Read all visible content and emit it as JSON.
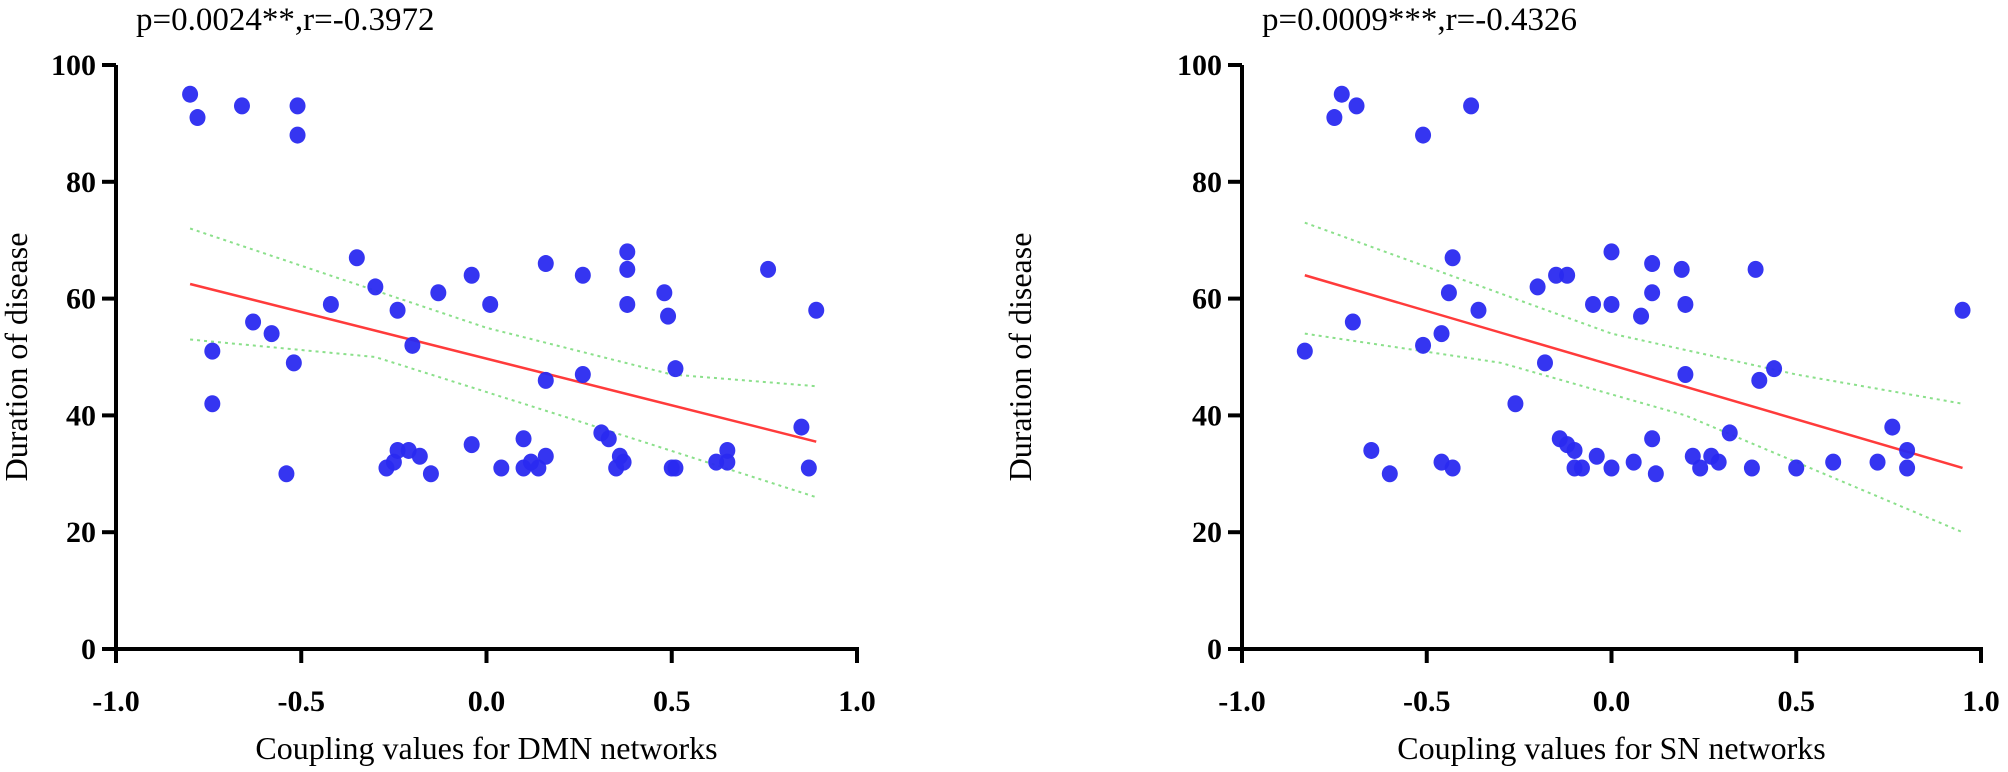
{
  "chart_data": [
    {
      "type": "scatter",
      "title": "p=0.0024**,r=-0.3972",
      "xlabel": "Coupling values for DMN networks",
      "ylabel": "Duration of disease",
      "xlim": [
        -1.0,
        1.0
      ],
      "ylim": [
        0,
        100
      ],
      "xticks": [
        "-1.0",
        "-0.5",
        "0.0",
        "0.5",
        "1.0"
      ],
      "yticks": [
        "0",
        "20",
        "40",
        "60",
        "80",
        "100"
      ],
      "point_color": "#2a2af0",
      "fit_color": "#ff3b3b",
      "ci_color": "#8be08b",
      "grid": false,
      "points": [
        [
          -0.8,
          95
        ],
        [
          -0.78,
          91
        ],
        [
          -0.66,
          93
        ],
        [
          -0.51,
          93
        ],
        [
          -0.51,
          88
        ],
        [
          -0.35,
          67
        ],
        [
          -0.3,
          62
        ],
        [
          -0.24,
          58
        ],
        [
          -0.42,
          59
        ],
        [
          -0.63,
          56
        ],
        [
          -0.58,
          54
        ],
        [
          -0.74,
          51
        ],
        [
          -0.52,
          49
        ],
        [
          -0.74,
          42
        ],
        [
          -0.54,
          30
        ],
        [
          -0.2,
          52
        ],
        [
          -0.13,
          61
        ],
        [
          -0.04,
          64
        ],
        [
          0.01,
          59
        ],
        [
          0.16,
          66
        ],
        [
          0.26,
          64
        ],
        [
          0.38,
          68
        ],
        [
          0.38,
          65
        ],
        [
          0.38,
          59
        ],
        [
          0.48,
          61
        ],
        [
          0.49,
          57
        ],
        [
          0.76,
          65
        ],
        [
          0.89,
          58
        ],
        [
          0.16,
          46
        ],
        [
          0.26,
          47
        ],
        [
          0.51,
          48
        ],
        [
          0.85,
          38
        ],
        [
          -0.27,
          31
        ],
        [
          -0.25,
          32
        ],
        [
          -0.24,
          34
        ],
        [
          -0.21,
          34
        ],
        [
          -0.18,
          33
        ],
        [
          -0.15,
          30
        ],
        [
          -0.04,
          35
        ],
        [
          0.04,
          31
        ],
        [
          0.1,
          31
        ],
        [
          0.1,
          36
        ],
        [
          0.12,
          32
        ],
        [
          0.14,
          31
        ],
        [
          0.16,
          33
        ],
        [
          0.31,
          37
        ],
        [
          0.33,
          36
        ],
        [
          0.35,
          31
        ],
        [
          0.36,
          33
        ],
        [
          0.37,
          32
        ],
        [
          0.5,
          31
        ],
        [
          0.51,
          31
        ],
        [
          0.62,
          32
        ],
        [
          0.65,
          34
        ],
        [
          0.65,
          32
        ],
        [
          0.87,
          31
        ]
      ],
      "fit": {
        "x": [
          -0.8,
          0.89
        ],
        "y": [
          62.5,
          35.5
        ]
      },
      "ci_upper": [
        [
          -0.8,
          72
        ],
        [
          0.0,
          55
        ],
        [
          0.5,
          47
        ],
        [
          0.89,
          45
        ]
      ],
      "ci_lower": [
        [
          -0.8,
          53
        ],
        [
          -0.3,
          50
        ],
        [
          0.2,
          40
        ],
        [
          0.89,
          26
        ]
      ]
    },
    {
      "type": "scatter",
      "title": "p=0.0009***,r=-0.4326",
      "xlabel": "Coupling values for SN networks",
      "ylabel": "Duration of disease",
      "xlim": [
        -1.0,
        1.0
      ],
      "ylim": [
        0,
        100
      ],
      "xticks": [
        "-1.0",
        "-0.5",
        "0.0",
        "0.5",
        "1.0"
      ],
      "yticks": [
        "0",
        "20",
        "40",
        "60",
        "80",
        "100"
      ],
      "point_color": "#2a2af0",
      "fit_color": "#ff3b3b",
      "ci_color": "#8be08b",
      "grid": false,
      "points": [
        [
          -0.73,
          95
        ],
        [
          -0.75,
          91
        ],
        [
          -0.69,
          93
        ],
        [
          -0.38,
          93
        ],
        [
          -0.51,
          88
        ],
        [
          -0.43,
          67
        ],
        [
          -0.44,
          61
        ],
        [
          -0.36,
          58
        ],
        [
          -0.2,
          62
        ],
        [
          -0.15,
          64
        ],
        [
          -0.12,
          64
        ],
        [
          -0.05,
          59
        ],
        [
          0.0,
          59
        ],
        [
          0.0,
          68
        ],
        [
          0.11,
          66
        ],
        [
          0.19,
          65
        ],
        [
          0.39,
          65
        ],
        [
          0.11,
          61
        ],
        [
          0.2,
          59
        ],
        [
          0.08,
          57
        ],
        [
          -0.7,
          56
        ],
        [
          -0.46,
          54
        ],
        [
          -0.51,
          52
        ],
        [
          -0.83,
          51
        ],
        [
          -0.18,
          49
        ],
        [
          0.2,
          47
        ],
        [
          0.4,
          46
        ],
        [
          0.44,
          48
        ],
        [
          -0.26,
          42
        ],
        [
          0.76,
          38
        ],
        [
          -0.65,
          34
        ],
        [
          -0.6,
          30
        ],
        [
          -0.46,
          32
        ],
        [
          -0.43,
          31
        ],
        [
          -0.14,
          36
        ],
        [
          -0.12,
          35
        ],
        [
          -0.1,
          34
        ],
        [
          -0.1,
          31
        ],
        [
          -0.08,
          31
        ],
        [
          -0.04,
          33
        ],
        [
          0.0,
          31
        ],
        [
          0.06,
          32
        ],
        [
          0.11,
          36
        ],
        [
          0.12,
          30
        ],
        [
          0.22,
          33
        ],
        [
          0.24,
          31
        ],
        [
          0.27,
          33
        ],
        [
          0.29,
          32
        ],
        [
          0.32,
          37
        ],
        [
          0.38,
          31
        ],
        [
          0.5,
          31
        ],
        [
          0.6,
          32
        ],
        [
          0.72,
          32
        ],
        [
          0.8,
          34
        ],
        [
          0.8,
          31
        ],
        [
          0.95,
          58
        ]
      ],
      "fit": {
        "x": [
          -0.83,
          0.95
        ],
        "y": [
          64.0,
          31.0
        ]
      },
      "ci_upper": [
        [
          -0.83,
          73
        ],
        [
          0.0,
          54
        ],
        [
          0.5,
          47
        ],
        [
          0.95,
          42
        ]
      ],
      "ci_lower": [
        [
          -0.83,
          54
        ],
        [
          -0.3,
          49
        ],
        [
          0.2,
          40
        ],
        [
          0.95,
          20
        ]
      ]
    }
  ]
}
